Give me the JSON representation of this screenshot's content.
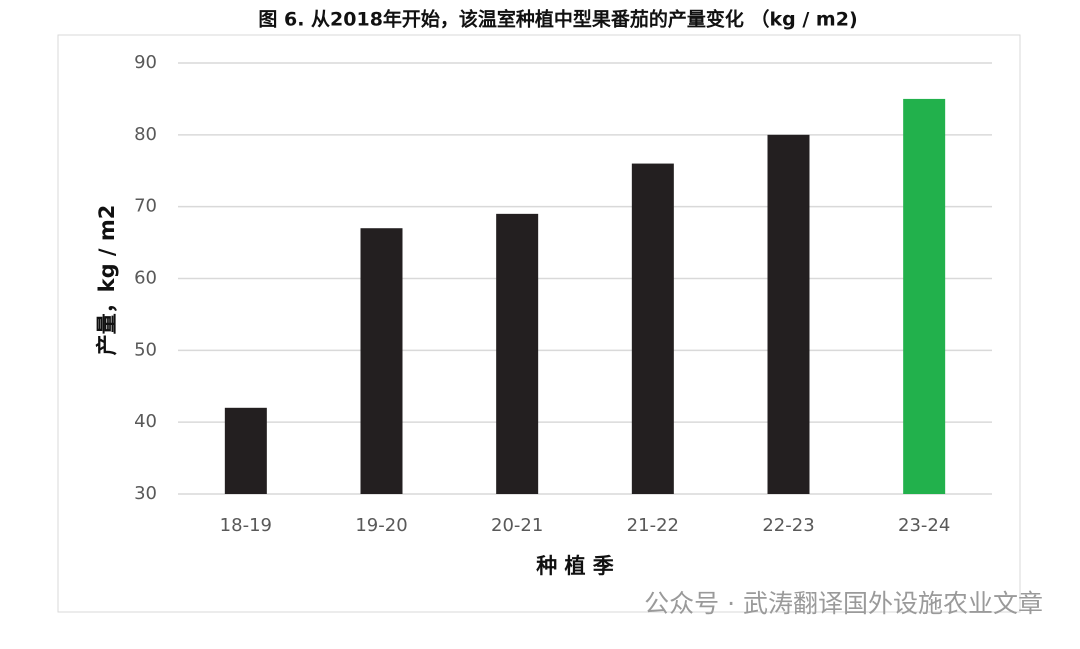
{
  "chart_data": {
    "type": "bar",
    "title": "图 6. 从2018年开始，该温室种植中型果番茄的产量变化 （kg / m2)",
    "x_label": "种 植 季",
    "y_label": "产量，kg / m2",
    "categories": [
      "18-19",
      "19-20",
      "20-21",
      "21-22",
      "22-23",
      "23-24"
    ],
    "values": [
      42,
      67,
      69,
      76,
      80,
      85
    ],
    "colors": [
      "#231f20",
      "#231f20",
      "#231f20",
      "#231f20",
      "#231f20",
      "#22b14c"
    ],
    "ylim": [
      30,
      90
    ],
    "yticks": [
      30,
      40,
      50,
      60,
      70,
      80,
      90
    ],
    "grid": true
  },
  "watermark": "公众号 · 武涛翻译国外设施农业文章"
}
